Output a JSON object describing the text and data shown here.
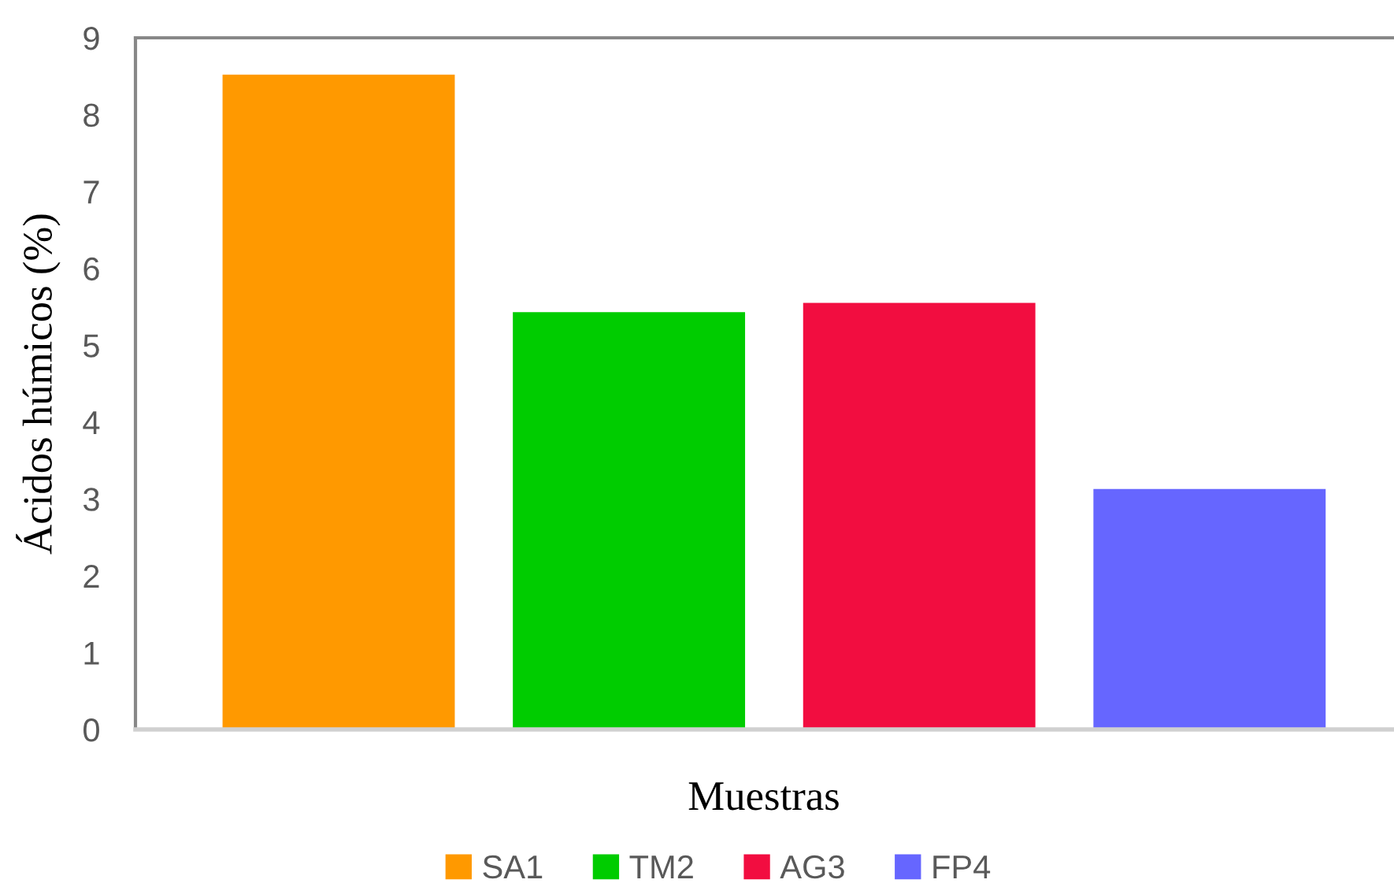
{
  "chart_data": {
    "type": "bar",
    "ylabel": "Ácidos húmicos (%)",
    "xlabel": "Muestras",
    "categories": [
      null,
      null,
      null,
      null
    ],
    "series": [
      {
        "name": "SA1",
        "color": "#ff9900",
        "values": [
          8.52,
          null,
          null,
          null
        ]
      },
      {
        "name": "TM2",
        "color": "#00cc00",
        "values": [
          null,
          5.43,
          null,
          null
        ]
      },
      {
        "name": "AG3",
        "color": "#f20d40",
        "values": [
          null,
          null,
          5.55,
          null
        ]
      },
      {
        "name": "FP4",
        "color": "#6666ff",
        "values": [
          null,
          null,
          null,
          3.13
        ]
      }
    ],
    "ylim": [
      0,
      9
    ],
    "yticks": [
      0,
      1,
      2,
      3,
      4,
      5,
      6,
      7,
      8,
      9
    ],
    "grid": false,
    "legend": "bottom"
  }
}
